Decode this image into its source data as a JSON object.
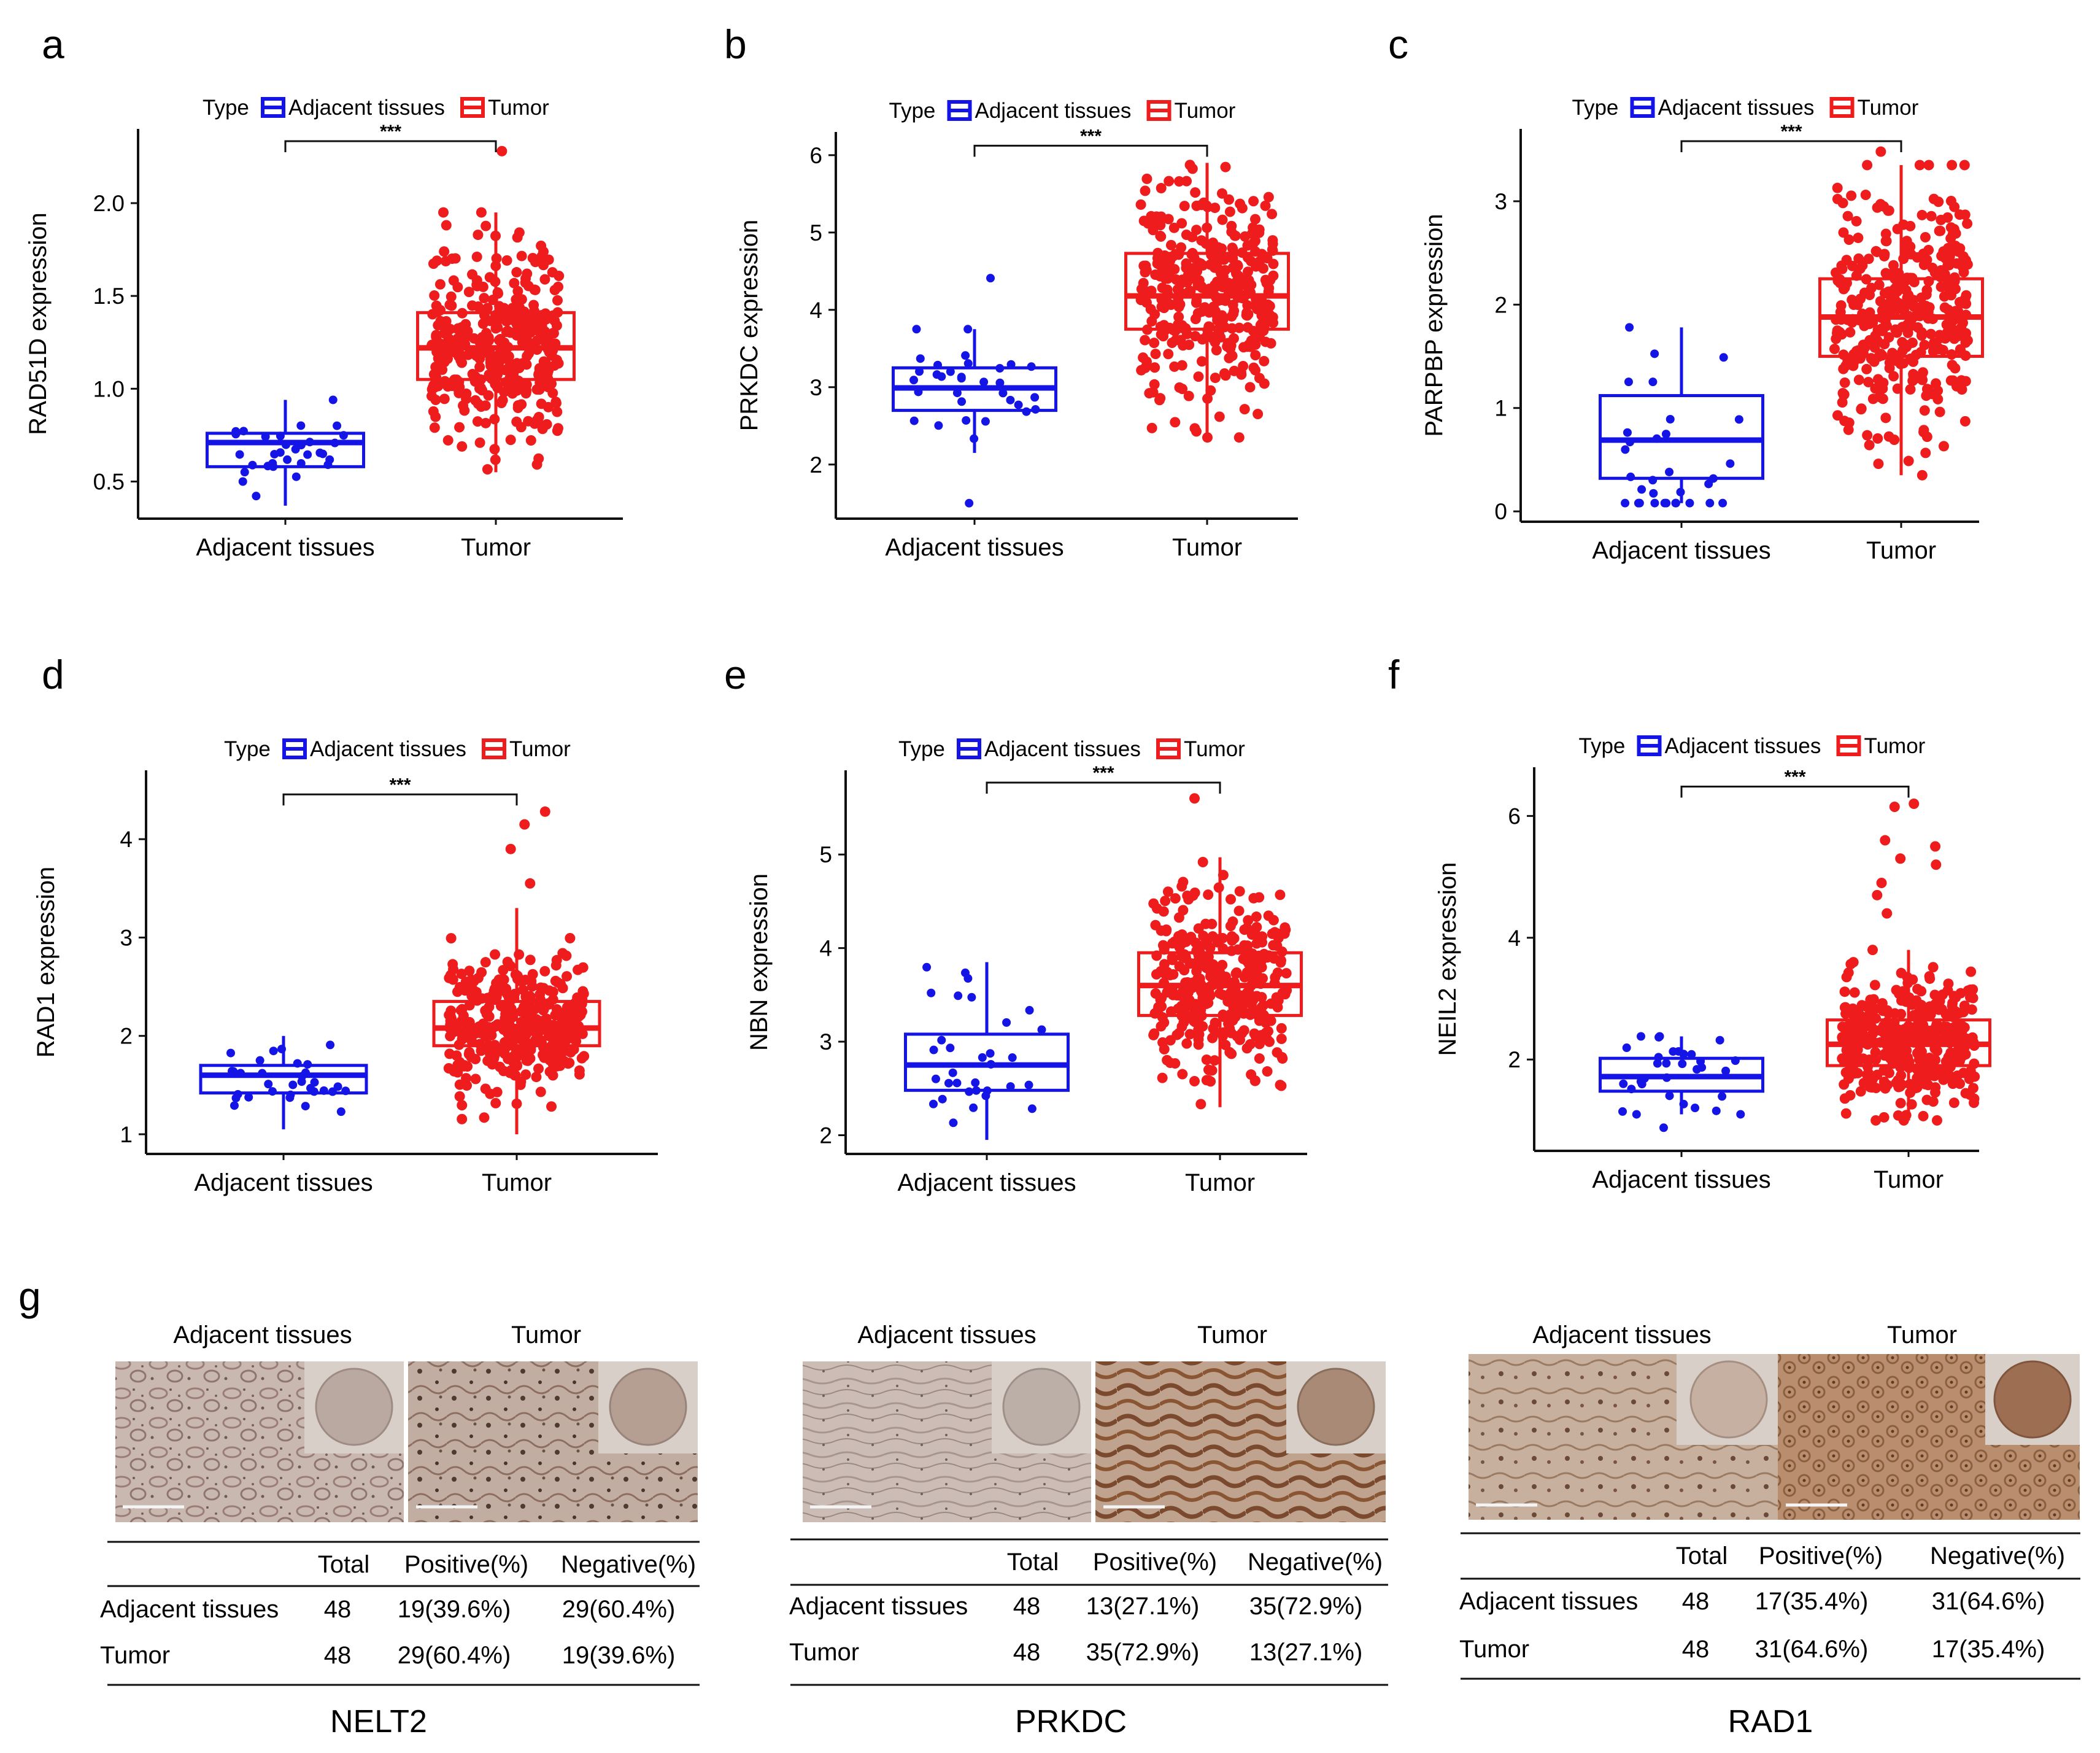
{
  "colors": {
    "adjacent": "#1414e6",
    "tumor": "#ee1c1c",
    "axis": "#111111"
  },
  "legend": {
    "type_label": "Type",
    "adjacent_label": "Adjacent tissues",
    "tumor_label": "Tumor"
  },
  "chart_data": [
    {
      "panel": "a",
      "type": "boxplot",
      "ylabel": "RAD51D expression",
      "categories": [
        "Adjacent tissues",
        "Tumor"
      ],
      "ylim": [
        0.3,
        2.4
      ],
      "yticks": [
        0.5,
        1.0,
        1.5,
        2.0
      ],
      "ytick_labels": [
        "0.5",
        "1.0",
        "1.5",
        "2.0"
      ],
      "significance": "***",
      "boxes": [
        {
          "name": "Adjacent tissues",
          "min": 0.37,
          "q1": 0.58,
          "median": 0.71,
          "q3": 0.76,
          "max": 0.94,
          "n": 32,
          "outliers": []
        },
        {
          "name": "Tumor",
          "min": 0.55,
          "q1": 1.05,
          "median": 1.22,
          "q3": 1.41,
          "max": 1.95,
          "n": 375,
          "outliers": [
            2.28
          ]
        }
      ]
    },
    {
      "panel": "b",
      "type": "boxplot",
      "ylabel": "PRKDC expression",
      "categories": [
        "Adjacent tissues",
        "Tumor"
      ],
      "ylim": [
        1.3,
        6.3
      ],
      "yticks": [
        2,
        3,
        4,
        5,
        6
      ],
      "ytick_labels": [
        "2",
        "3",
        "4",
        "5",
        "6"
      ],
      "significance": "***",
      "boxes": [
        {
          "name": "Adjacent tissues",
          "min": 2.15,
          "q1": 2.7,
          "median": 2.99,
          "q3": 3.25,
          "max": 3.75,
          "n": 32,
          "outliers": [
            4.41,
            1.5
          ]
        },
        {
          "name": "Tumor",
          "min": 2.35,
          "q1": 3.75,
          "median": 4.18,
          "q3": 4.73,
          "max": 5.9,
          "n": 375,
          "outliers": []
        }
      ]
    },
    {
      "panel": "c",
      "type": "boxplot",
      "ylabel": "PARPBP expression",
      "categories": [
        "Adjacent tissues",
        "Tumor"
      ],
      "ylim": [
        -0.1,
        3.7
      ],
      "yticks": [
        0,
        1,
        2,
        3
      ],
      "ytick_labels": [
        "0",
        "1",
        "2",
        "3"
      ],
      "significance": "***",
      "boxes": [
        {
          "name": "Adjacent tissues",
          "min": 0.08,
          "q1": 0.32,
          "median": 0.69,
          "q3": 1.12,
          "max": 1.78,
          "n": 32,
          "outliers": []
        },
        {
          "name": "Tumor",
          "min": 0.35,
          "q1": 1.5,
          "median": 1.88,
          "q3": 2.25,
          "max": 3.35,
          "n": 375,
          "outliers": [
            3.48
          ]
        }
      ]
    },
    {
      "panel": "d",
      "type": "boxplot",
      "ylabel": "RAD1 expression",
      "categories": [
        "Adjacent tissues",
        "Tumor"
      ],
      "ylim": [
        0.8,
        4.7
      ],
      "yticks": [
        1,
        2,
        3,
        4
      ],
      "ytick_labels": [
        "1",
        "2",
        "3",
        "4"
      ],
      "significance": "***",
      "boxes": [
        {
          "name": "Adjacent tissues",
          "min": 1.05,
          "q1": 1.42,
          "median": 1.6,
          "q3": 1.7,
          "max": 2.0,
          "n": 32,
          "outliers": []
        },
        {
          "name": "Tumor",
          "min": 1.0,
          "q1": 1.9,
          "median": 2.08,
          "q3": 2.35,
          "max": 3.3,
          "n": 375,
          "outliers": [
            4.28,
            4.15,
            3.9,
            3.55
          ]
        }
      ]
    },
    {
      "panel": "e",
      "type": "boxplot",
      "ylabel": "NBN expression",
      "categories": [
        "Adjacent tissues",
        "Tumor"
      ],
      "ylim": [
        1.8,
        5.9
      ],
      "yticks": [
        2,
        3,
        4,
        5
      ],
      "ytick_labels": [
        "2",
        "3",
        "4",
        "5"
      ],
      "significance": "***",
      "boxes": [
        {
          "name": "Adjacent tissues",
          "min": 1.95,
          "q1": 2.48,
          "median": 2.75,
          "q3": 3.08,
          "max": 3.85,
          "n": 32,
          "outliers": []
        },
        {
          "name": "Tumor",
          "min": 2.3,
          "q1": 3.28,
          "median": 3.6,
          "q3": 3.95,
          "max": 4.97,
          "n": 375,
          "outliers": [
            5.6
          ]
        }
      ]
    },
    {
      "panel": "f",
      "type": "boxplot",
      "ylabel": "NEIL2 expression",
      "categories": [
        "Adjacent tissues",
        "Tumor"
      ],
      "ylim": [
        0.5,
        6.8
      ],
      "yticks": [
        2,
        4,
        6
      ],
      "ytick_labels": [
        "2",
        "4",
        "6"
      ],
      "significance": "***",
      "boxes": [
        {
          "name": "Adjacent tissues",
          "min": 1.1,
          "q1": 1.48,
          "median": 1.72,
          "q3": 2.02,
          "max": 2.38,
          "n": 32,
          "outliers": [
            0.88
          ]
        },
        {
          "name": "Tumor",
          "min": 1.0,
          "q1": 1.9,
          "median": 2.25,
          "q3": 2.65,
          "max": 3.8,
          "n": 375,
          "outliers": [
            6.2,
            6.15,
            5.6,
            5.5,
            5.3,
            5.2,
            4.9,
            4.7,
            4.4
          ]
        }
      ]
    }
  ],
  "ihc": {
    "letter": "g",
    "col_headers": [
      "Total",
      "Positive(%)",
      "Negative(%)"
    ],
    "image_labels": [
      "Adjacent tissues",
      "Tumor"
    ],
    "genes": [
      {
        "gene": "NELT2",
        "rows": [
          {
            "label": "Adjacent tissues",
            "total": "48",
            "positive": "19(39.6%)",
            "negative": "29(60.4%)"
          },
          {
            "label": "Tumor",
            "total": "48",
            "positive": "29(60.4%)",
            "negative": "19(39.6%)"
          }
        ]
      },
      {
        "gene": "PRKDC",
        "rows": [
          {
            "label": "Adjacent tissues",
            "total": "48",
            "positive": "13(27.1%)",
            "negative": "35(72.9%)"
          },
          {
            "label": "Tumor",
            "total": "48",
            "positive": "35(72.9%)",
            "negative": "13(27.1%)"
          }
        ]
      },
      {
        "gene": "RAD1",
        "rows": [
          {
            "label": "Adjacent tissues",
            "total": "48",
            "positive": "17(35.4%)",
            "negative": "31(64.6%)"
          },
          {
            "label": "Tumor",
            "total": "48",
            "positive": "31(64.6%)",
            "negative": "17(35.4%)"
          }
        ]
      }
    ]
  }
}
